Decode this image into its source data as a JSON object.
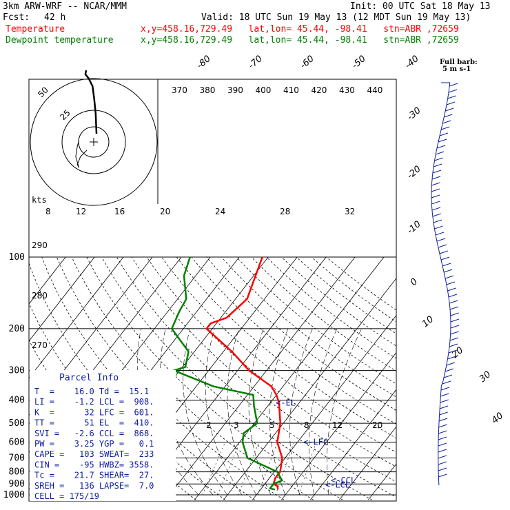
{
  "header": {
    "model": "3km ARW-WRF -- NCAR/MMM",
    "init": "Init: 00 UTC Sat 18 May 13",
    "fcst_label": "Fcst:",
    "fcst_value": "42 h",
    "valid": "Valid: 18 UTC Sun 19 May 13 (12 MDT Sun 19 May 13)",
    "temp_label": "Temperature",
    "temp_loc": "x,y=458.16,729.49   lat,lon= 45.44, -98.41   stn=ABR ,72659",
    "dew_label": "Dewpoint temperature",
    "dew_loc": "x,y=458.16,729.49   lat,lon= 45.44, -98.41   stn=ABR ,72659"
  },
  "colors": {
    "temperature": "#ff0000",
    "dewpoint": "#008000",
    "text_red": "#ff0000",
    "text_green": "#008000"
  },
  "chart_data": {
    "type": "line",
    "title": "",
    "pressure_labels": [
      "100",
      "200",
      "300",
      "400",
      "500",
      "600",
      "700",
      "800",
      "900",
      "1000"
    ],
    "isotherm_labels": [
      "-80",
      "-70",
      "-60",
      "-50",
      "-40",
      "-30",
      "-20",
      "-10",
      "0",
      "10",
      "20",
      "30",
      "40"
    ],
    "theta_labels": [
      "370",
      "380",
      "390",
      "400",
      "410",
      "420",
      "430",
      "440"
    ],
    "theta_side_labels": [
      "290",
      "280",
      "270"
    ],
    "mixing_ratio_labels": [
      "2",
      "3",
      "5",
      "8",
      "12",
      "20"
    ],
    "hodo_speed_labels": [
      "8",
      "12",
      "16",
      "20",
      "24",
      "28",
      "32"
    ],
    "hodo_units": "kts",
    "hodo_ring_labels": [
      "50",
      "25"
    ],
    "level_labels": [
      {
        "text": "<-EL",
        "p": 410
      },
      {
        "text": "<-LFC",
        "p": 601
      },
      {
        "text": "<-CCL",
        "p": 868
      },
      {
        "text": "<-LCL",
        "p": 908
      }
    ],
    "barb_legend": {
      "title": "Full barb:",
      "value": "5 m s-1"
    },
    "series": [
      {
        "name": "Temperature",
        "points": [
          [
            100,
            -52
          ],
          [
            150,
            -46
          ],
          [
            180,
            -48
          ],
          [
            190,
            -52
          ],
          [
            200,
            -52
          ],
          [
            250,
            -37
          ],
          [
            300,
            -26
          ],
          [
            350,
            -14
          ],
          [
            380,
            -10
          ],
          [
            410,
            -7
          ],
          [
            500,
            -1
          ],
          [
            600,
            3
          ],
          [
            700,
            9
          ],
          [
            800,
            12
          ],
          [
            850,
            12
          ],
          [
            900,
            13
          ],
          [
            920,
            15
          ],
          [
            950,
            16
          ]
        ]
      },
      {
        "name": "Dewpoint temperature",
        "points": [
          [
            100,
            -77
          ],
          [
            120,
            -74
          ],
          [
            150,
            -67
          ],
          [
            170,
            -66
          ],
          [
            200,
            -64
          ],
          [
            250,
            -52
          ],
          [
            290,
            -49
          ],
          [
            300,
            -52
          ],
          [
            350,
            -34
          ],
          [
            380,
            -18
          ],
          [
            420,
            -15
          ],
          [
            500,
            -9
          ],
          [
            550,
            -11
          ],
          [
            600,
            -9
          ],
          [
            700,
            -3
          ],
          [
            800,
            11
          ],
          [
            870,
            15
          ],
          [
            900,
            13
          ],
          [
            940,
            13
          ],
          [
            950,
            15
          ]
        ]
      }
    ],
    "hodograph_trace": [
      [
        0,
        0
      ],
      [
        -1,
        25
      ],
      [
        -3,
        45
      ],
      [
        -5,
        60
      ],
      [
        -10,
        70
      ],
      [
        -14,
        75
      ],
      [
        -13,
        80
      ]
    ],
    "hodograph_lowlevel": [
      [
        0,
        0
      ],
      [
        -8,
        -8
      ],
      [
        -12,
        -18
      ],
      [
        -10,
        -22
      ],
      [
        -14,
        -8
      ],
      [
        -12,
        5
      ],
      [
        -10,
        12
      ]
    ]
  },
  "parcel_info": {
    "title": "Parcel Info",
    "rows": [
      "T  =    16.0 Td =  15.1",
      "LI =    -1.2 LCL =  908.",
      "K  =      32 LFC =  601.",
      "TT =      51 EL  =  410.",
      "SVI =   -2.6 CCL =  868.",
      "PW =    3.25 YGP =   0.1",
      "CAPE =   103 SWEAT=  233",
      "CIN =    -95 HWBZ= 3558.",
      "Tc =    21.7 SHEAR=  27.",
      "SREH =   136 LAPSE=  7.0",
      "CELL = 175/19"
    ]
  }
}
